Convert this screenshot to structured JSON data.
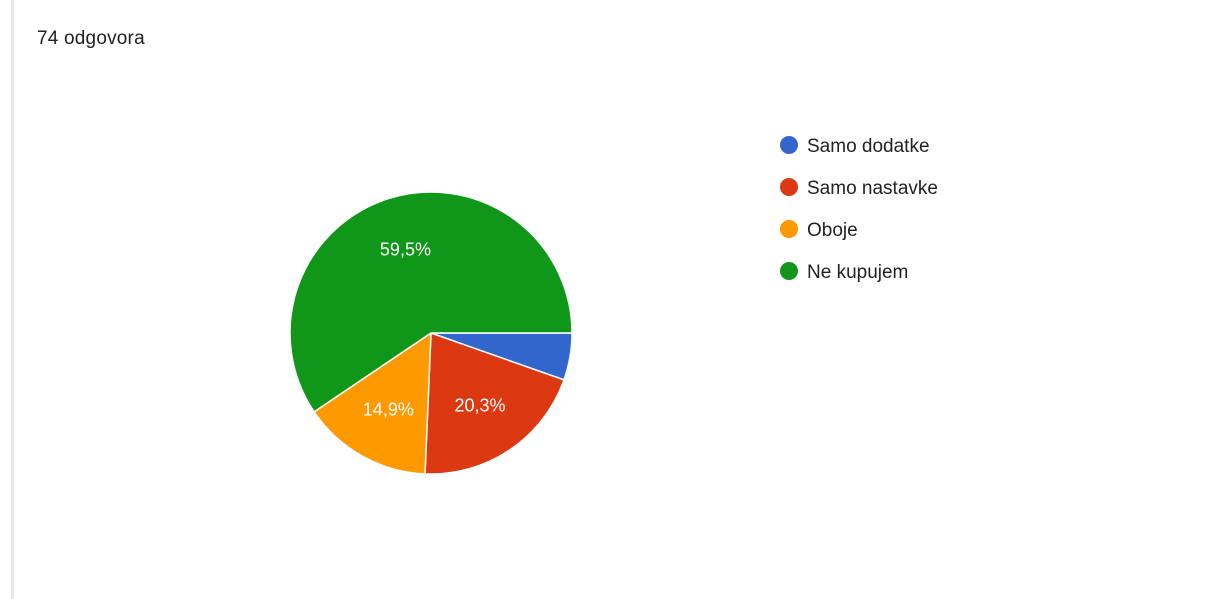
{
  "summary": {
    "response_count": "74 odgovora"
  },
  "chart_data": {
    "type": "pie",
    "legend_position": "right",
    "slices": [
      {
        "label": "Samo dodatke",
        "value": 5.4,
        "display": "",
        "color": "#3366cc"
      },
      {
        "label": "Samo nastavke",
        "value": 20.3,
        "display": "20,3%",
        "color": "#dc3912"
      },
      {
        "label": "Oboje",
        "value": 14.9,
        "display": "14,9%",
        "color": "#ff9900"
      },
      {
        "label": "Ne kupujem",
        "value": 59.5,
        "display": "59,5%",
        "color": "#109618"
      }
    ]
  }
}
